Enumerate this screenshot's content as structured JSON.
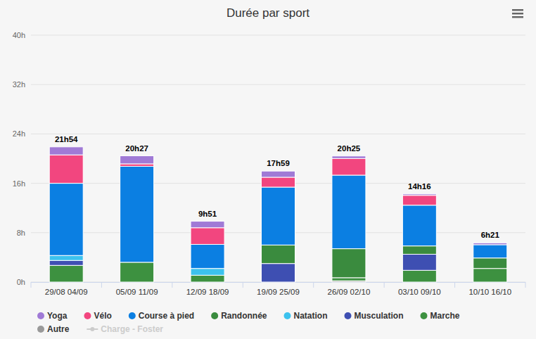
{
  "chart_data": {
    "type": "bar",
    "title": "Durée par sport",
    "stacked": true,
    "grid": true,
    "legend": "bottom",
    "categories": [
      "29/08 04/09",
      "05/09 11/09",
      "12/09 18/09",
      "19/09 25/09",
      "26/09 02/10",
      "03/10 09/10",
      "10/10 16/10"
    ],
    "series": [
      {
        "name": "Yoga",
        "color": "#a07ad6",
        "values": [
          1.3,
          1.3,
          1.05,
          1.0,
          0.4,
          0.22,
          0.3
        ]
      },
      {
        "name": "Vélo",
        "color": "#f2467f",
        "values": [
          4.6,
          0.4,
          2.7,
          1.6,
          2.7,
          1.6,
          0
        ]
      },
      {
        "name": "Course à pied",
        "color": "#0b7fe2",
        "values": [
          11.7,
          15.55,
          3.9,
          9.38,
          11.92,
          6.6,
          2.15
        ]
      },
      {
        "name": "Randonnée",
        "color": "#3a8b3e",
        "values": [
          0,
          0,
          0,
          3.0,
          4.7,
          1.35,
          1.7
        ]
      },
      {
        "name": "Natation",
        "color": "#3cc2ee",
        "values": [
          0.8,
          0,
          1.1,
          0,
          0,
          0,
          0
        ]
      },
      {
        "name": "Musculation",
        "color": "#3e4fb2",
        "values": [
          0.8,
          0,
          0,
          3.0,
          0,
          2.6,
          0
        ]
      },
      {
        "name": "Marche",
        "color": "#3d9140",
        "values": [
          2.7,
          3.2,
          1.1,
          0,
          0.5,
          1.9,
          2.2
        ]
      },
      {
        "name": "Autre",
        "color": "#999999",
        "values": [
          0,
          0,
          0,
          0,
          0.2,
          0,
          0
        ]
      },
      {
        "name": "Charge - Foster",
        "type": "line",
        "color": "#cccccc",
        "values": [
          null,
          null,
          null,
          null,
          null,
          null,
          null
        ]
      }
    ],
    "totals": [
      21.9,
      20.45,
      9.85,
      17.983,
      20.417,
      14.267,
      6.35
    ],
    "total_labels": [
      "21h54",
      "20h27",
      "9h51",
      "17h59",
      "20h25",
      "14h16",
      "6h21"
    ],
    "ylim": [
      0,
      40
    ],
    "yticks": [
      {
        "value": 0,
        "label": "0h"
      },
      {
        "value": 8,
        "label": "8h"
      },
      {
        "value": 16,
        "label": "16h"
      },
      {
        "value": 24,
        "label": "24h"
      },
      {
        "value": 32,
        "label": "32h"
      },
      {
        "value": 40,
        "label": "40h"
      }
    ]
  }
}
